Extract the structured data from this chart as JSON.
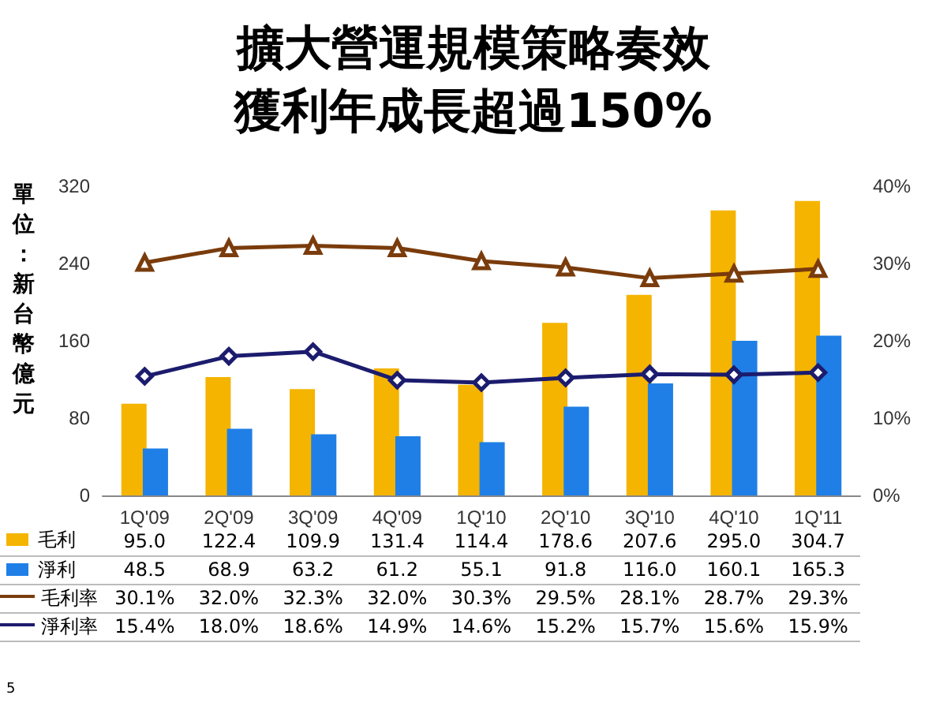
{
  "chart_data": {
    "type": "bar",
    "title": "擴大營運規模策略奏效獲利年成長超過150%",
    "legend": "left",
    "ylabel": "單位：新台幣億元",
    "categories": [
      "1Q'09",
      "2Q'09",
      "3Q'09",
      "4Q'09",
      "1Q'10",
      "2Q'10",
      "3Q'10",
      "4Q'10",
      "1Q'11"
    ],
    "ylim": [
      0,
      320
    ],
    "yticks": [
      0,
      80,
      160,
      240,
      320
    ],
    "y2lim": [
      0,
      40
    ],
    "y2ticks": [
      {
        "value": 0,
        "label": "0%"
      },
      {
        "value": 10,
        "label": "10%"
      },
      {
        "value": 20,
        "label": "20%"
      },
      {
        "value": 30,
        "label": "30%"
      },
      {
        "value": 40,
        "label": "40%"
      }
    ],
    "grid": false,
    "series": [
      {
        "name": "毛利",
        "color": "#f5b400",
        "values": [
          95.0,
          122.4,
          109.9,
          131.4,
          114.4,
          178.6,
          207.6,
          295.0,
          304.7
        ],
        "value_labels": [
          "95.0",
          "122.4",
          "109.9",
          "131.4",
          "114.4",
          "178.6",
          "207.6",
          "295.0",
          "304.7"
        ]
      },
      {
        "name": "淨利",
        "color": "#1f7fe6",
        "values": [
          48.5,
          68.9,
          63.2,
          61.2,
          55.1,
          91.8,
          116.0,
          160.1,
          165.3
        ],
        "value_labels": [
          "48.5",
          "68.9",
          "63.2",
          "61.2",
          "55.1",
          "91.8",
          "116.0",
          "160.1",
          "165.3"
        ]
      },
      {
        "name": "毛利率",
        "type": "line",
        "axis": "y2",
        "marker": "triangle",
        "color": "#7a3c0c",
        "values": [
          30.1,
          32.0,
          32.3,
          32.0,
          30.3,
          29.5,
          28.1,
          28.7,
          29.3
        ],
        "value_labels": [
          "30.1%",
          "32.0%",
          "32.3%",
          "32.0%",
          "30.3%",
          "29.5%",
          "28.1%",
          "28.7%",
          "29.3%"
        ]
      },
      {
        "name": "淨利率",
        "type": "line",
        "axis": "y2",
        "marker": "diamond",
        "color": "#1c1c6e",
        "values": [
          15.4,
          18.0,
          18.6,
          14.9,
          14.6,
          15.2,
          15.7,
          15.6,
          15.9
        ],
        "value_labels": [
          "15.4%",
          "18.0%",
          "18.6%",
          "14.9%",
          "14.6%",
          "15.2%",
          "15.7%",
          "15.6%",
          "15.9%"
        ]
      }
    ],
    "annotations": [
      "5"
    ]
  }
}
